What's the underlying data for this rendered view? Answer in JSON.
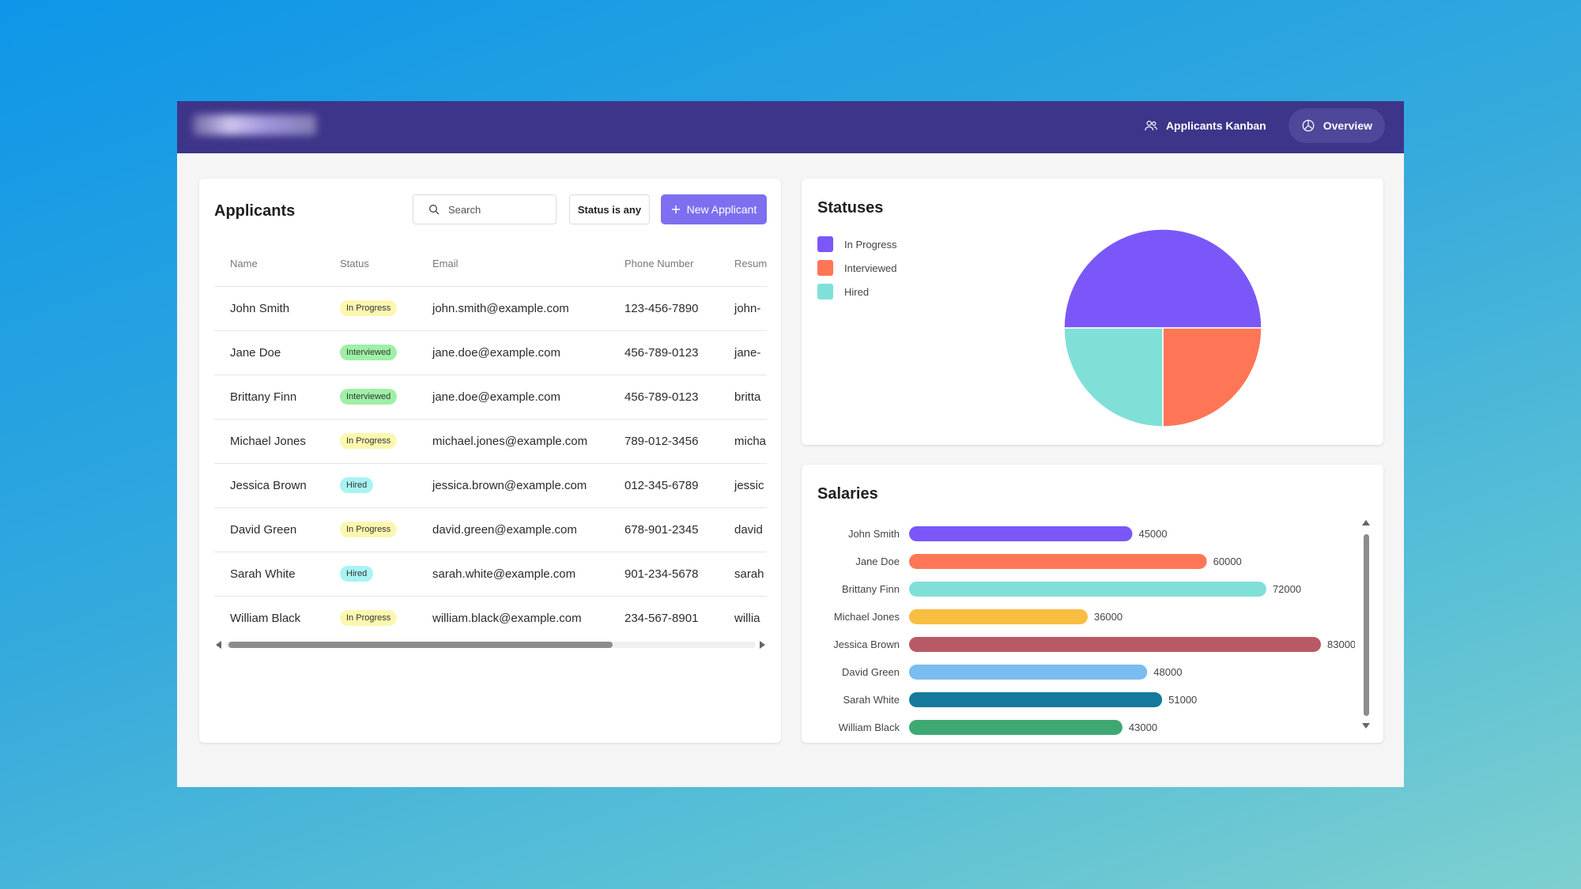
{
  "nav": {
    "kanban_label": "Applicants Kanban",
    "overview_label": "Overview",
    "kanban_icon": "users-icon",
    "overview_icon": "pie-chart-icon"
  },
  "applicants": {
    "title": "Applicants",
    "search_placeholder": "Search",
    "status_filter": "Status is any",
    "new_button": "New Applicant",
    "columns": [
      "Name",
      "Status",
      "Email",
      "Phone Number",
      "Resume"
    ],
    "rows": [
      {
        "name": "John Smith",
        "status": "In Progress",
        "email": "john.smith@example.com",
        "phone": "123-456-7890",
        "resume": "john-"
      },
      {
        "name": "Jane Doe",
        "status": "Interviewed",
        "email": "jane.doe@example.com",
        "phone": "456-789-0123",
        "resume": "jane-"
      },
      {
        "name": "Brittany Finn",
        "status": "Interviewed",
        "email": "jane.doe@example.com",
        "phone": "456-789-0123",
        "resume": "britta"
      },
      {
        "name": "Michael Jones",
        "status": "In Progress",
        "email": "michael.jones@example.com",
        "phone": "789-012-3456",
        "resume": "micha"
      },
      {
        "name": "Jessica Brown",
        "status": "Hired",
        "email": "jessica.brown@example.com",
        "phone": "012-345-6789",
        "resume": "jessic"
      },
      {
        "name": "David Green",
        "status": "In Progress",
        "email": "david.green@example.com",
        "phone": "678-901-2345",
        "resume": "david"
      },
      {
        "name": "Sarah White",
        "status": "Hired",
        "email": "sarah.white@example.com",
        "phone": "901-234-5678",
        "resume": "sarah"
      },
      {
        "name": "William Black",
        "status": "In Progress",
        "email": "william.black@example.com",
        "phone": "234-567-8901",
        "resume": "willia"
      }
    ],
    "status_colors": {
      "In Progress": "#fbf7b0",
      "Interviewed": "#9ef0a6",
      "Hired": "#a9f3f3"
    }
  },
  "statuses": {
    "title": "Statuses",
    "chart_data": {
      "type": "pie",
      "labels": [
        "In Progress",
        "Interviewed",
        "Hired"
      ],
      "values": [
        4,
        2,
        2
      ],
      "colors": [
        "#7b57f9",
        "#ff7656",
        "#80e0d8"
      ]
    }
  },
  "salaries": {
    "title": "Salaries",
    "chart_data": {
      "type": "bar",
      "orientation": "horizontal",
      "categories": [
        "John Smith",
        "Jane Doe",
        "Brittany Finn",
        "Michael Jones",
        "Jessica Brown",
        "David Green",
        "Sarah White",
        "William Black"
      ],
      "values": [
        45000,
        60000,
        72000,
        36000,
        83000,
        48000,
        51000,
        43000
      ],
      "colors": [
        "#7b57f9",
        "#ff7656",
        "#80e0d8",
        "#f8bd41",
        "#b85a65",
        "#7abdf0",
        "#14799c",
        "#3ea873"
      ],
      "xlim": [
        0,
        83000
      ]
    }
  }
}
